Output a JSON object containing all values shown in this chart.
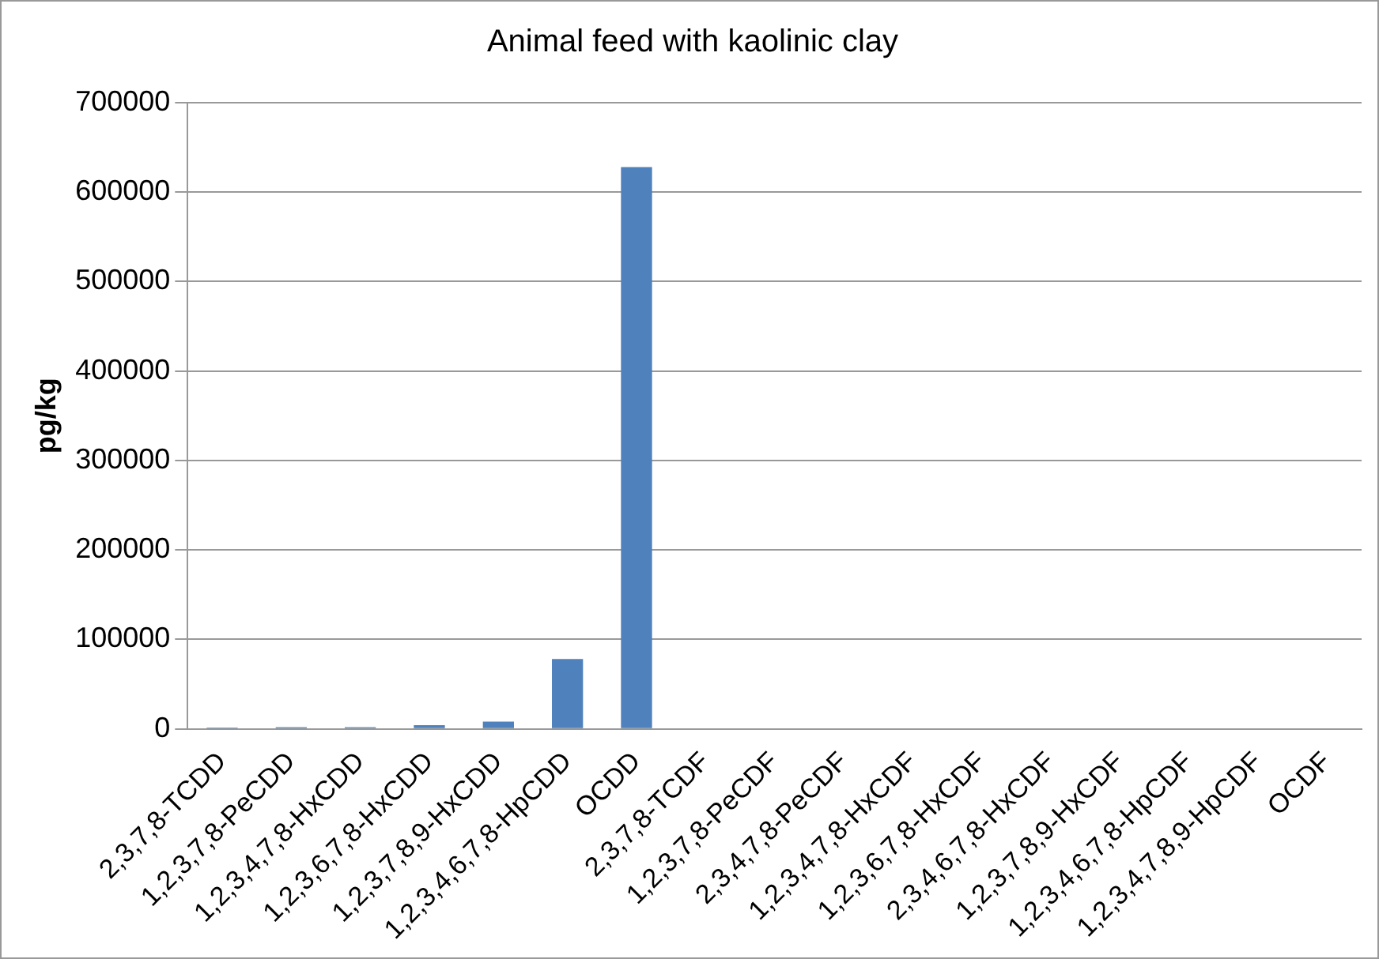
{
  "chart_data": {
    "type": "bar",
    "title": "Animal feed with kaolinic clay",
    "ylabel": "pg/kg",
    "categories": [
      "2,3,7,8-TCDD",
      "1,2,3,7,8-PeCDD",
      "1,2,3,4,7,8-HxCDD",
      "1,2,3,6,7,8-HxCDD",
      "1,2,3,7,8,9-HxCDD",
      "1,2,3,4,6,7,8-HpCDD",
      "OCDD",
      "2,3,7,8-TCDF",
      "1,2,3,7,8-PeCDF",
      "2,3,4,7,8-PeCDF",
      "1,2,3,4,7,8-HxCDF",
      "1,2,3,6,7,8-HxCDF",
      "2,3,4,6,7,8-HxCDF",
      "1,2,3,7,8,9-HxCDF",
      "1,2,3,4,6,7,8-HpCDF",
      "1,2,3,4,7,8,9-HpCDF",
      "OCDF"
    ],
    "values": [
      1500,
      2000,
      2000,
      4000,
      8000,
      78000,
      628000,
      0,
      0,
      0,
      0,
      0,
      0,
      0,
      0,
      0,
      0
    ],
    "color": "#4f81bd",
    "ylim": [
      0,
      700000
    ],
    "yticks": [
      0,
      100000,
      200000,
      300000,
      400000,
      500000,
      600000,
      700000
    ],
    "grid": "y",
    "legend": false
  }
}
